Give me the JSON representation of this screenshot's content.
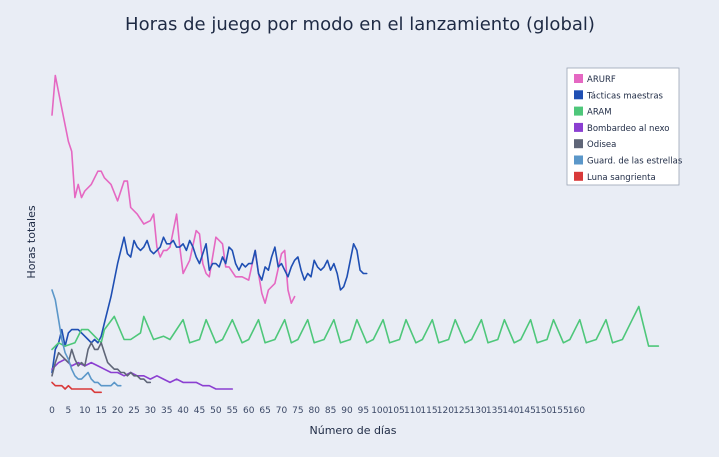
{
  "chart_data": {
    "type": "line",
    "title": "Horas de juego por modo en el lanzamiento (global)",
    "xlabel": "Número de días",
    "ylabel": "Horas totales",
    "xlim": [
      0,
      187
    ],
    "ylim": [
      0,
      100
    ],
    "xticks": [
      0,
      5,
      10,
      15,
      20,
      25,
      30,
      35,
      40,
      45,
      50,
      55,
      60,
      65,
      70,
      75,
      80,
      85,
      90,
      95,
      100,
      105,
      110,
      115,
      120,
      125,
      130,
      135,
      140,
      145,
      150,
      155,
      160
    ],
    "grid": false,
    "yticks_shown": false,
    "legend_position": "top-right",
    "series": [
      {
        "name": "ARURF",
        "color": "#e568c2",
        "x": [
          0,
          1,
          3,
          5,
          6,
          7,
          8,
          9,
          10,
          12,
          14,
          15,
          16,
          18,
          20,
          22,
          23,
          24,
          26,
          28,
          30,
          31,
          32,
          33,
          34,
          35,
          36,
          38,
          39,
          40,
          42,
          44,
          45,
          46,
          47,
          48,
          50,
          52,
          53,
          54,
          56,
          58,
          60,
          62,
          63,
          64,
          65,
          66,
          68,
          70,
          71,
          72,
          73,
          74
        ],
        "y": [
          83,
          95,
          85,
          75,
          72,
          58,
          62,
          58,
          60,
          62,
          66,
          66,
          64,
          62,
          57,
          63,
          63,
          55,
          53,
          50,
          51,
          53,
          43,
          40,
          42,
          42,
          43,
          53,
          43,
          35,
          39,
          48,
          47,
          38,
          35,
          34,
          46,
          44,
          37,
          37,
          34,
          34,
          33,
          42,
          35,
          29,
          26,
          30,
          32,
          41,
          42,
          30,
          26,
          28
        ]
      },
      {
        "name": "Tácticas maestras",
        "color": "#1f4fb3",
        "x": [
          0,
          1,
          2,
          3,
          4,
          5,
          6,
          7,
          8,
          9,
          10,
          11,
          12,
          13,
          14,
          15,
          16,
          17,
          18,
          19,
          20,
          21,
          22,
          23,
          24,
          25,
          26,
          27,
          28,
          29,
          30,
          31,
          32,
          33,
          34,
          35,
          36,
          37,
          38,
          39,
          40,
          41,
          42,
          43,
          44,
          45,
          46,
          47,
          48,
          49,
          50,
          51,
          52,
          53,
          54,
          55,
          56,
          57,
          58,
          59,
          60,
          61,
          62,
          63,
          64,
          65,
          66,
          67,
          68,
          69,
          70,
          71,
          72,
          73,
          74,
          75,
          76,
          77,
          78,
          79,
          80,
          81,
          82,
          83,
          84,
          85,
          86,
          87,
          88,
          89,
          90,
          91,
          92,
          93,
          94,
          95,
          96
        ],
        "y": [
          5,
          12,
          14,
          18,
          13,
          17,
          18,
          18,
          18,
          17,
          16,
          15,
          14,
          15,
          14,
          16,
          20,
          24,
          28,
          33,
          38,
          42,
          46,
          41,
          40,
          45,
          43,
          42,
          43,
          45,
          42,
          41,
          42,
          43,
          46,
          44,
          44,
          45,
          43,
          43,
          44,
          42,
          45,
          43,
          40,
          38,
          41,
          44,
          36,
          38,
          38,
          37,
          40,
          38,
          43,
          42,
          38,
          36,
          38,
          37,
          38,
          38,
          42,
          35,
          33,
          37,
          36,
          40,
          43,
          37,
          38,
          36,
          34,
          37,
          39,
          40,
          36,
          33,
          35,
          34,
          39,
          37,
          36,
          37,
          39,
          36,
          38,
          35,
          30,
          31,
          34,
          39,
          44,
          42,
          36,
          35,
          35
        ]
      },
      {
        "name": "ARAM",
        "color": "#4ec77a",
        "x": [
          0,
          2,
          4,
          7,
          9,
          11,
          13,
          15,
          16,
          19,
          22,
          24,
          27,
          28,
          31,
          34,
          36,
          40,
          42,
          45,
          47,
          50,
          52,
          55,
          58,
          60,
          63,
          65,
          68,
          71,
          73,
          75,
          78,
          80,
          83,
          86,
          88,
          91,
          93,
          96,
          98,
          101,
          103,
          106,
          108,
          111,
          113,
          116,
          118,
          121,
          123,
          126,
          128,
          131,
          133,
          136,
          138,
          141,
          143,
          146,
          148,
          151,
          153,
          156,
          158,
          161,
          163,
          166,
          169,
          171,
          174,
          177,
          179,
          182,
          185
        ],
        "y": [
          12,
          14,
          13,
          14,
          18,
          18,
          16,
          14,
          18,
          22,
          15,
          15,
          17,
          22,
          15,
          16,
          15,
          21,
          14,
          15,
          21,
          14,
          15,
          21,
          14,
          15,
          21,
          14,
          15,
          21,
          14,
          15,
          21,
          14,
          15,
          21,
          14,
          15,
          21,
          14,
          15,
          21,
          14,
          15,
          21,
          14,
          15,
          21,
          14,
          15,
          21,
          14,
          15,
          21,
          14,
          15,
          21,
          14,
          15,
          21,
          14,
          15,
          21,
          14,
          15,
          21,
          14,
          15,
          21,
          14,
          15,
          21,
          25,
          13,
          13
        ]
      },
      {
        "name": "Bombardeo al nexo",
        "color": "#8b3fd1",
        "x": [
          0,
          2,
          4,
          6,
          8,
          10,
          12,
          14,
          16,
          18,
          20,
          22,
          24,
          26,
          28,
          30,
          32,
          34,
          36,
          38,
          40,
          42,
          44,
          46,
          48,
          50,
          52,
          54,
          55
        ],
        "y": [
          6,
          8,
          9,
          7,
          8,
          7,
          8,
          7,
          6,
          5,
          5,
          4,
          5,
          4,
          4,
          3,
          4,
          3,
          2,
          3,
          2,
          2,
          2,
          1,
          1,
          0,
          0,
          0,
          0
        ]
      },
      {
        "name": "Odisea",
        "color": "#5f6678",
        "x": [
          0,
          1,
          2,
          3,
          4,
          5,
          6,
          7,
          8,
          9,
          10,
          11,
          12,
          13,
          14,
          15,
          16,
          17,
          18,
          19,
          20,
          21,
          22,
          23,
          24,
          25,
          26,
          27,
          28,
          29,
          30
        ],
        "y": [
          4,
          8,
          11,
          10,
          9,
          8,
          12,
          9,
          7,
          8,
          7,
          12,
          14,
          12,
          12,
          14,
          11,
          8,
          7,
          6,
          6,
          5,
          5,
          4,
          5,
          4,
          4,
          3,
          3,
          2,
          2
        ]
      },
      {
        "name": "Guard. de las estrellas",
        "color": "#5b97c9",
        "x": [
          0,
          1,
          2,
          3,
          4,
          5,
          6,
          7,
          8,
          9,
          10,
          11,
          12,
          13,
          14,
          15,
          16,
          17,
          18,
          19,
          20,
          21
        ],
        "y": [
          30,
          27,
          21,
          15,
          11,
          9,
          6,
          4,
          3,
          3,
          4,
          5,
          3,
          2,
          2,
          1,
          1,
          1,
          1,
          2,
          1,
          1
        ]
      },
      {
        "name": "Luna sangrienta",
        "color": "#d93a3a",
        "x": [
          0,
          1,
          2,
          3,
          4,
          5,
          6,
          7,
          8,
          9,
          10,
          11,
          12,
          13,
          14,
          15
        ],
        "y": [
          2,
          1,
          1,
          1,
          0,
          1,
          0,
          0,
          0,
          0,
          0,
          0,
          0,
          -1,
          -1,
          -1
        ]
      }
    ]
  }
}
